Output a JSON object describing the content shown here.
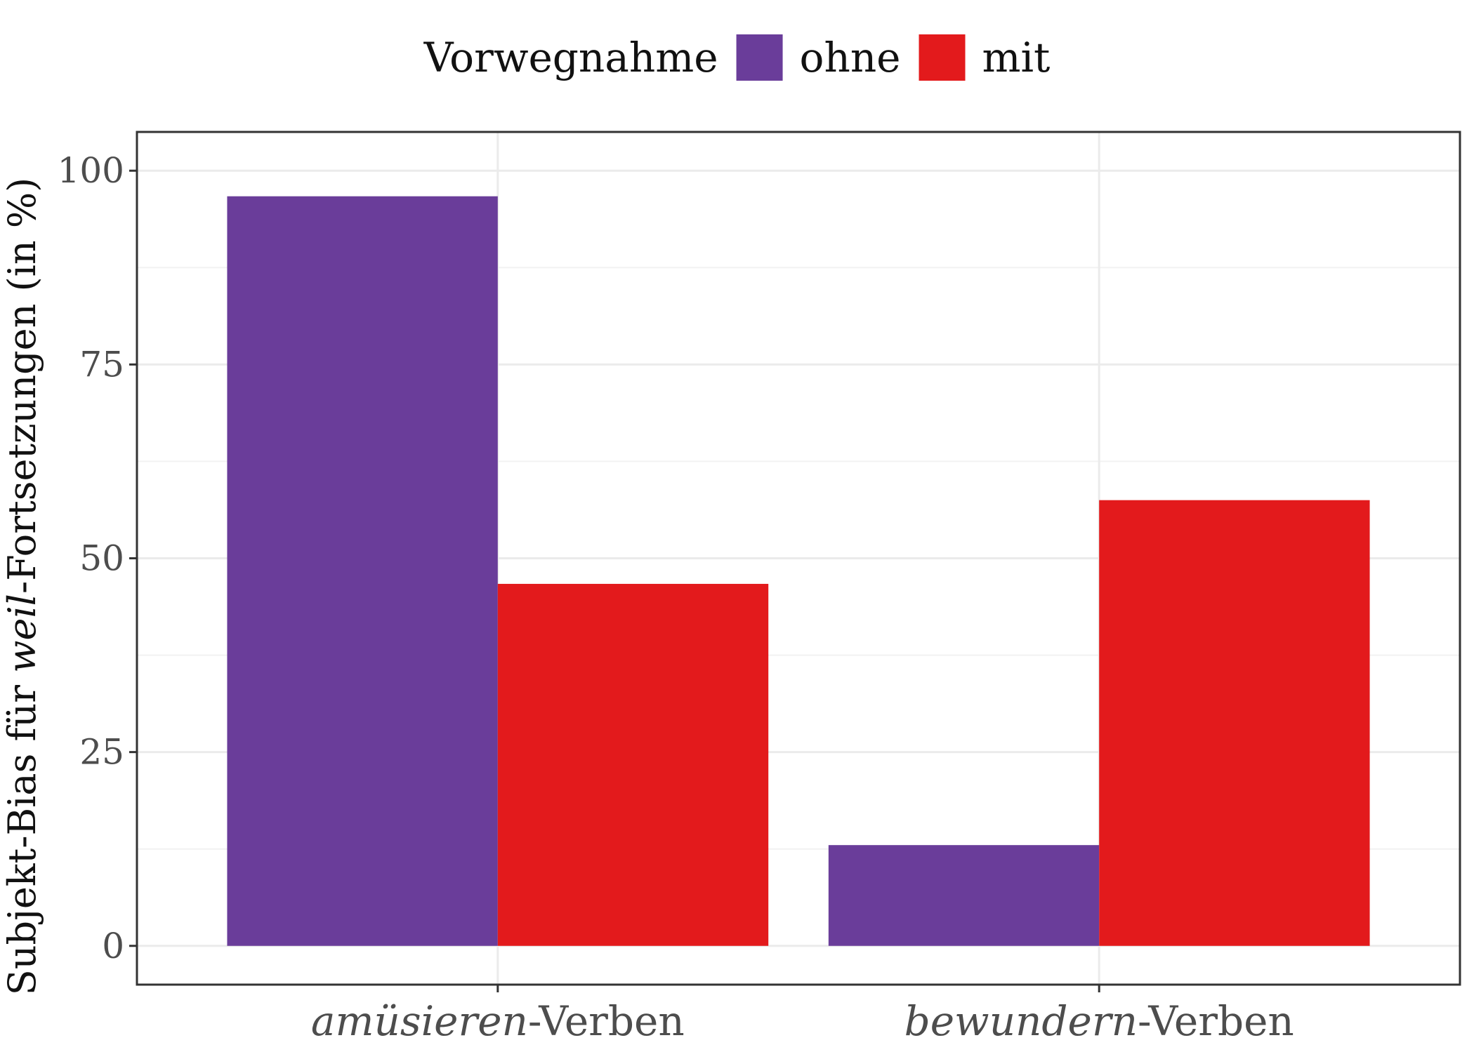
{
  "chart_data": {
    "type": "bar",
    "categories": [
      {
        "italic": "amüsieren",
        "rest": "-Verben"
      },
      {
        "italic": "bewundern",
        "rest": "-Verben"
      }
    ],
    "series": [
      {
        "name": "ohne",
        "color": "#6a3d9a",
        "values": [
          96.7,
          13.0
        ]
      },
      {
        "name": "mit",
        "color": "#e31a1c",
        "values": [
          46.7,
          57.5
        ]
      }
    ],
    "legend": {
      "title": "Vorwegnahme",
      "position": "top"
    },
    "ylabel": {
      "before": "Subjekt-Bias für ",
      "italic": "weil",
      "after": "-Fortsetzungen (in %)"
    },
    "xlabel": "",
    "ylim": [
      -5,
      105
    ],
    "yticks": [
      0,
      25,
      50,
      75,
      100
    ],
    "y_minor_ticks": [
      12.5,
      37.5,
      62.5,
      87.5
    ],
    "grid": true
  }
}
